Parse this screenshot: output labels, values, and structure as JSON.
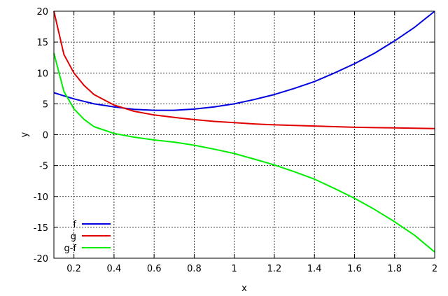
{
  "chart_data": {
    "type": "line",
    "title": "",
    "xlabel": "x",
    "ylabel": "y",
    "xlim": [
      0.1,
      2
    ],
    "ylim": [
      -20,
      20
    ],
    "xticks": [
      0.2,
      0.4,
      0.6,
      0.8,
      1,
      1.2,
      1.4,
      1.6,
      1.8,
      2
    ],
    "xtick_labels": [
      "0.2",
      "0.4",
      "0.6",
      "0.8",
      "1",
      "1.2",
      "1.4",
      "1.6",
      "1.8",
      "2"
    ],
    "yticks": [
      -20,
      -15,
      -10,
      -5,
      0,
      5,
      10,
      15,
      20
    ],
    "ytick_labels": [
      "-20",
      "-15",
      "-10",
      "-5",
      "0",
      "5",
      "10",
      "15",
      "20"
    ],
    "grid": true,
    "legend_position": "bottom-left",
    "x": [
      0.1,
      0.15,
      0.2,
      0.25,
      0.3,
      0.4,
      0.5,
      0.6,
      0.7,
      0.8,
      0.9,
      1.0,
      1.1,
      1.2,
      1.3,
      1.4,
      1.5,
      1.6,
      1.7,
      1.8,
      1.9,
      2.0
    ],
    "series": [
      {
        "name": "f",
        "color": "#0000e0",
        "values": [
          6.8,
          6.3,
          5.8,
          5.4,
          5.0,
          4.5,
          4.1,
          3.95,
          3.95,
          4.15,
          4.5,
          5.0,
          5.7,
          6.5,
          7.5,
          8.6,
          10.0,
          11.5,
          13.2,
          15.2,
          17.4,
          20.0
        ]
      },
      {
        "name": "g",
        "color": "#e00000",
        "values": [
          20.0,
          13.0,
          10.0,
          8.0,
          6.5,
          4.8,
          3.8,
          3.2,
          2.8,
          2.45,
          2.15,
          1.95,
          1.75,
          1.6,
          1.5,
          1.4,
          1.3,
          1.2,
          1.15,
          1.1,
          1.05,
          1.0
        ]
      },
      {
        "name": "g-f",
        "color": "#00ee00",
        "values": [
          13.2,
          7.0,
          4.2,
          2.5,
          1.3,
          0.2,
          -0.4,
          -0.85,
          -1.2,
          -1.7,
          -2.35,
          -3.05,
          -3.95,
          -4.9,
          -6.0,
          -7.2,
          -8.7,
          -10.3,
          -12.1,
          -14.1,
          -16.3,
          -19.0
        ]
      }
    ]
  }
}
